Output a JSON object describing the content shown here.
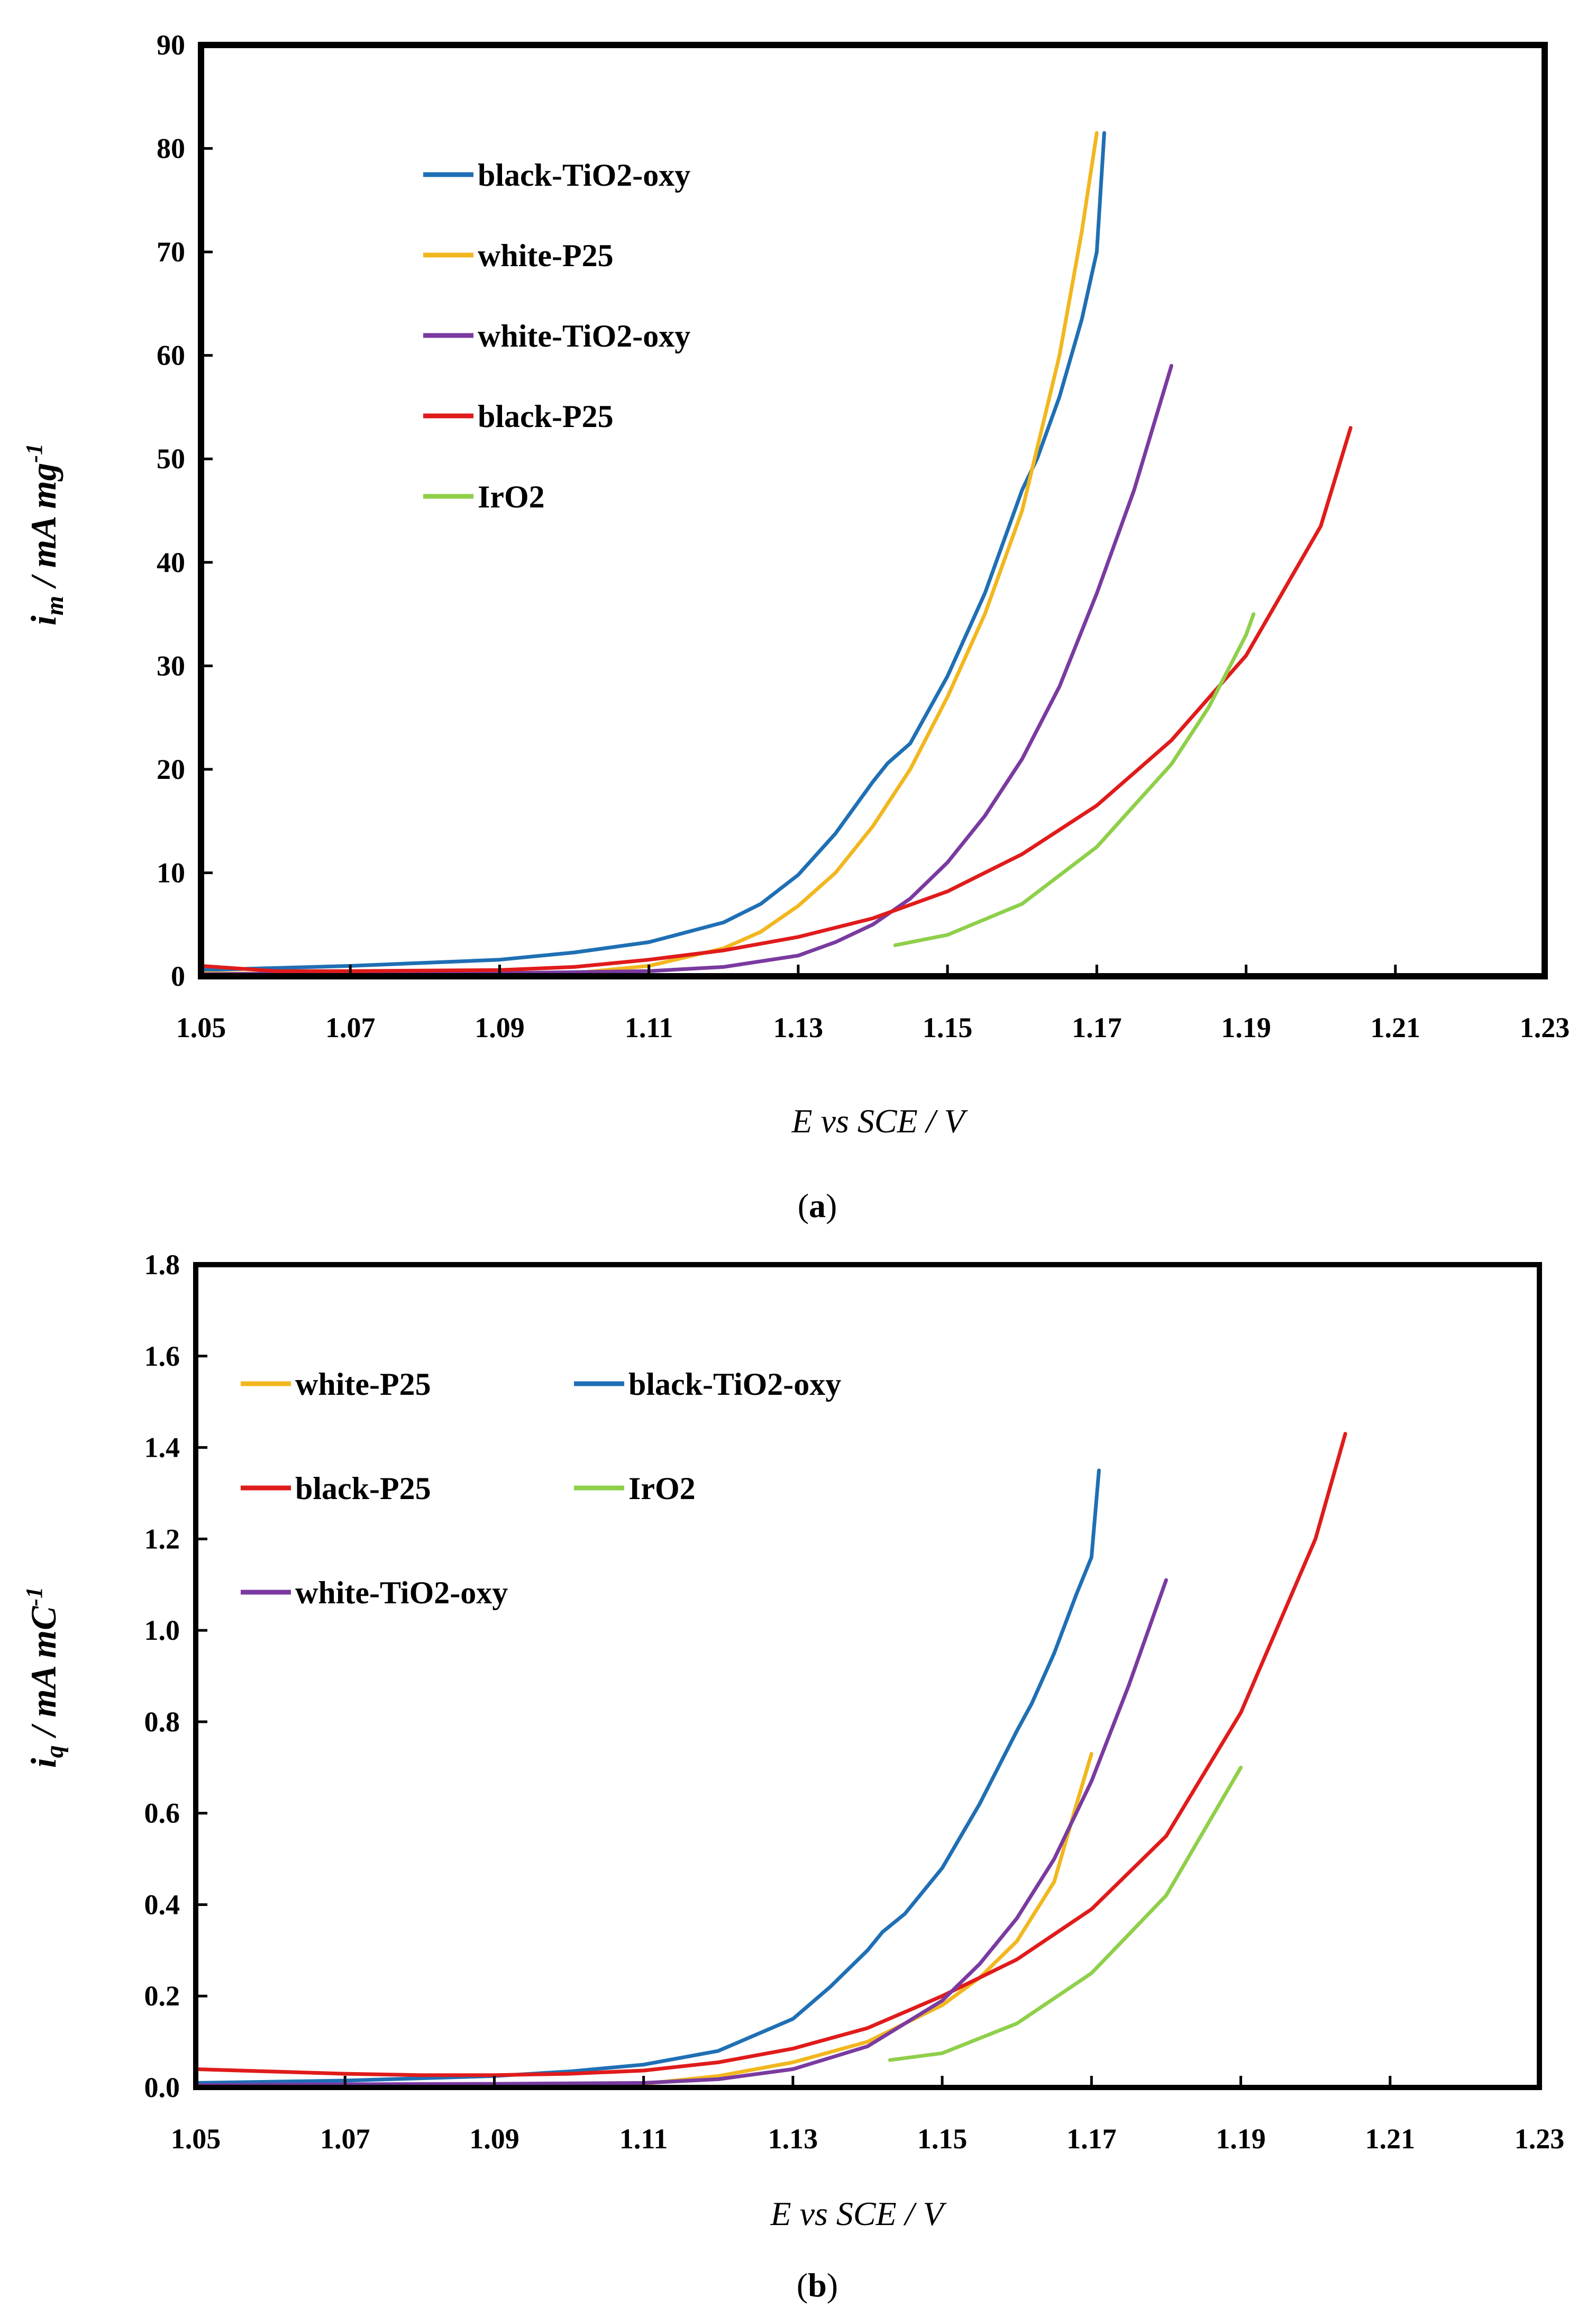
{
  "chart_data": [
    {
      "type": "line",
      "panel_label": "a",
      "title": "",
      "xlabel": "E vs SCE / V",
      "ylabel": {
        "main": "i",
        "sub": "m",
        "unit": " / mA mg",
        "sup": "-1"
      },
      "xlim": [
        1.05,
        1.23
      ],
      "ylim": [
        0,
        90
      ],
      "xticks": [
        "1.05",
        "1.07",
        "1.09",
        "1.11",
        "1.13",
        "1.15",
        "1.17",
        "1.19",
        "1.21",
        "1.23"
      ],
      "yticks": [
        "0",
        "10",
        "20",
        "30",
        "40",
        "50",
        "60",
        "70",
        "80",
        "90"
      ],
      "grid": false,
      "legend_position": "top-left",
      "series": [
        {
          "name": "black-TiO2-oxy",
          "color": "#1f6fb4",
          "points": [
            [
              1.05,
              0.6
            ],
            [
              1.07,
              1.0
            ],
            [
              1.09,
              1.6
            ],
            [
              1.1,
              2.3
            ],
            [
              1.11,
              3.3
            ],
            [
              1.12,
              5.2
            ],
            [
              1.125,
              7.0
            ],
            [
              1.13,
              9.8
            ],
            [
              1.135,
              13.8
            ],
            [
              1.14,
              18.8
            ],
            [
              1.142,
              20.6
            ],
            [
              1.145,
              22.5
            ],
            [
              1.15,
              29.0
            ],
            [
              1.155,
              37.0
            ],
            [
              1.16,
              47.0
            ],
            [
              1.162,
              50.0
            ],
            [
              1.165,
              56.0
            ],
            [
              1.168,
              63.5
            ],
            [
              1.17,
              70.0
            ],
            [
              1.171,
              81.5
            ]
          ]
        },
        {
          "name": "white-P25",
          "color": "#f2b71f",
          "points": [
            [
              1.05,
              0.3
            ],
            [
              1.07,
              0.2
            ],
            [
              1.09,
              0.3
            ],
            [
              1.095,
              0.0
            ],
            [
              1.1,
              0.3
            ],
            [
              1.11,
              1.0
            ],
            [
              1.12,
              2.7
            ],
            [
              1.125,
              4.3
            ],
            [
              1.13,
              6.8
            ],
            [
              1.135,
              10.0
            ],
            [
              1.14,
              14.5
            ],
            [
              1.145,
              20.0
            ],
            [
              1.15,
              27.0
            ],
            [
              1.155,
              35.0
            ],
            [
              1.16,
              45.0
            ],
            [
              1.165,
              60.0
            ],
            [
              1.168,
              72.0
            ],
            [
              1.17,
              81.5
            ]
          ]
        },
        {
          "name": "white-TiO2-oxy",
          "color": "#7a3aa0",
          "points": [
            [
              1.05,
              0.2
            ],
            [
              1.07,
              0.3
            ],
            [
              1.09,
              0.3
            ],
            [
              1.1,
              0.4
            ],
            [
              1.11,
              0.5
            ],
            [
              1.12,
              0.9
            ],
            [
              1.13,
              2.0
            ],
            [
              1.135,
              3.3
            ],
            [
              1.14,
              5.0
            ],
            [
              1.145,
              7.5
            ],
            [
              1.15,
              11.0
            ],
            [
              1.155,
              15.5
            ],
            [
              1.16,
              21.0
            ],
            [
              1.165,
              28.0
            ],
            [
              1.17,
              37.0
            ],
            [
              1.175,
              47.0
            ],
            [
              1.18,
              59.0
            ]
          ]
        },
        {
          "name": "black-P25",
          "color": "#e01b1b",
          "points": [
            [
              1.05,
              1.0
            ],
            [
              1.06,
              0.5
            ],
            [
              1.07,
              0.5
            ],
            [
              1.09,
              0.6
            ],
            [
              1.1,
              0.9
            ],
            [
              1.11,
              1.6
            ],
            [
              1.12,
              2.5
            ],
            [
              1.13,
              3.8
            ],
            [
              1.14,
              5.6
            ],
            [
              1.15,
              8.2
            ],
            [
              1.16,
              11.8
            ],
            [
              1.17,
              16.5
            ],
            [
              1.18,
              22.8
            ],
            [
              1.19,
              31.0
            ],
            [
              1.2,
              43.5
            ],
            [
              1.204,
              53.0
            ]
          ]
        },
        {
          "name": "IrO2",
          "color": "#8fcf4a",
          "points": [
            [
              1.143,
              3.0
            ],
            [
              1.15,
              4.0
            ],
            [
              1.16,
              7.0
            ],
            [
              1.17,
              12.5
            ],
            [
              1.18,
              20.5
            ],
            [
              1.185,
              26.0
            ],
            [
              1.19,
              33.0
            ],
            [
              1.191,
              35.0
            ]
          ]
        }
      ]
    },
    {
      "type": "line",
      "panel_label": "b",
      "title": "",
      "xlabel": "E vs SCE / V",
      "ylabel": {
        "main": "i",
        "sub": "q",
        "unit": " / mA mC",
        "sup": "-1"
      },
      "xlim": [
        1.05,
        1.23
      ],
      "ylim": [
        0,
        1.8
      ],
      "xticks": [
        "1.05",
        "1.07",
        "1.09",
        "1.11",
        "1.13",
        "1.15",
        "1.17",
        "1.19",
        "1.21",
        "1.23"
      ],
      "yticks": [
        "0.0",
        "0.2",
        "0.4",
        "0.6",
        "0.8",
        "1.0",
        "1.2",
        "1.4",
        "1.6",
        "1.8"
      ],
      "grid": false,
      "legend_position": "top-left",
      "series": [
        {
          "name": "white-P25",
          "color": "#f2b71f",
          "points": [
            [
              1.05,
              0.005
            ],
            [
              1.08,
              0.005
            ],
            [
              1.095,
              0.0
            ],
            [
              1.1,
              0.003
            ],
            [
              1.11,
              0.008
            ],
            [
              1.12,
              0.025
            ],
            [
              1.13,
              0.055
            ],
            [
              1.14,
              0.1
            ],
            [
              1.15,
              0.18
            ],
            [
              1.155,
              0.24
            ],
            [
              1.16,
              0.32
            ],
            [
              1.165,
              0.45
            ],
            [
              1.168,
              0.62
            ],
            [
              1.17,
              0.73
            ]
          ]
        },
        {
          "name": "black-TiO2-oxy",
          "color": "#1f6fb4",
          "points": [
            [
              1.05,
              0.01
            ],
            [
              1.07,
              0.015
            ],
            [
              1.09,
              0.025
            ],
            [
              1.1,
              0.035
            ],
            [
              1.11,
              0.05
            ],
            [
              1.12,
              0.08
            ],
            [
              1.13,
              0.15
            ],
            [
              1.135,
              0.22
            ],
            [
              1.14,
              0.3
            ],
            [
              1.142,
              0.34
            ],
            [
              1.145,
              0.38
            ],
            [
              1.15,
              0.48
            ],
            [
              1.155,
              0.62
            ],
            [
              1.16,
              0.78
            ],
            [
              1.162,
              0.84
            ],
            [
              1.165,
              0.95
            ],
            [
              1.168,
              1.08
            ],
            [
              1.17,
              1.16
            ],
            [
              1.171,
              1.35
            ]
          ]
        },
        {
          "name": "black-P25",
          "color": "#e01b1b",
          "points": [
            [
              1.05,
              0.04
            ],
            [
              1.06,
              0.035
            ],
            [
              1.07,
              0.03
            ],
            [
              1.08,
              0.027
            ],
            [
              1.09,
              0.027
            ],
            [
              1.1,
              0.03
            ],
            [
              1.11,
              0.037
            ],
            [
              1.12,
              0.055
            ],
            [
              1.13,
              0.085
            ],
            [
              1.14,
              0.13
            ],
            [
              1.15,
              0.2
            ],
            [
              1.16,
              0.28
            ],
            [
              1.17,
              0.39
            ],
            [
              1.18,
              0.55
            ],
            [
              1.19,
              0.82
            ],
            [
              1.2,
              1.2
            ],
            [
              1.204,
              1.43
            ]
          ]
        },
        {
          "name": "IrO2",
          "color": "#8fcf4a",
          "points": [
            [
              1.143,
              0.06
            ],
            [
              1.15,
              0.075
            ],
            [
              1.16,
              0.14
            ],
            [
              1.17,
              0.25
            ],
            [
              1.18,
              0.42
            ],
            [
              1.19,
              0.7
            ]
          ]
        },
        {
          "name": "white-TiO2-oxy",
          "color": "#7a3aa0",
          "points": [
            [
              1.05,
              0.005
            ],
            [
              1.07,
              0.007
            ],
            [
              1.09,
              0.008
            ],
            [
              1.11,
              0.01
            ],
            [
              1.12,
              0.018
            ],
            [
              1.13,
              0.04
            ],
            [
              1.14,
              0.09
            ],
            [
              1.15,
              0.19
            ],
            [
              1.155,
              0.27
            ],
            [
              1.16,
              0.37
            ],
            [
              1.165,
              0.5
            ],
            [
              1.17,
              0.67
            ],
            [
              1.175,
              0.88
            ],
            [
              1.18,
              1.11
            ]
          ]
        }
      ]
    }
  ]
}
